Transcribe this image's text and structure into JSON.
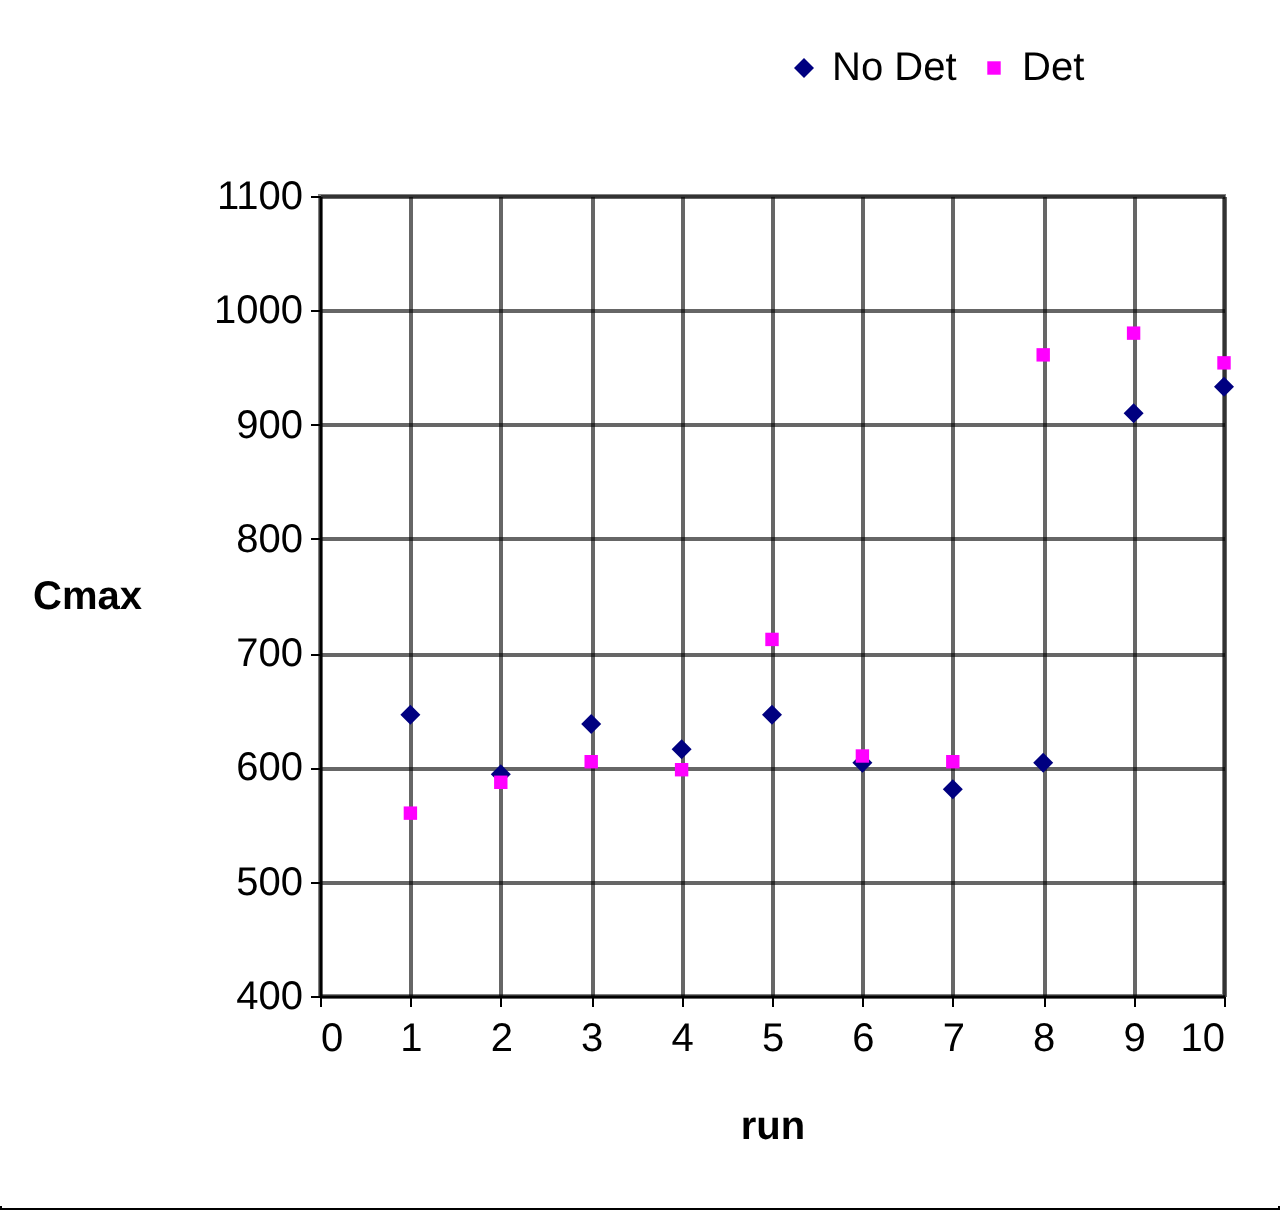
{
  "chart_data": {
    "type": "scatter",
    "xlabel": "run",
    "ylabel": "Cmax",
    "x": [
      1,
      2,
      3,
      4,
      5,
      6,
      7,
      8,
      9,
      10
    ],
    "series": [
      {
        "name": "No Det",
        "color": "#000080",
        "marker": "diamond",
        "values": [
          646,
          594,
          638,
          616,
          646,
          604,
          581,
          604,
          910,
          933
        ]
      },
      {
        "name": "Det",
        "color": "#ff00ff",
        "marker": "square",
        "values": [
          560,
          587,
          605,
          598,
          712,
          610,
          605,
          961,
          980,
          954
        ]
      }
    ],
    "xlim": [
      0,
      10
    ],
    "xticks": [
      0,
      1,
      2,
      3,
      4,
      5,
      6,
      7,
      8,
      9,
      10
    ],
    "ylim": [
      400,
      1100
    ],
    "yticks": [
      400,
      500,
      600,
      700,
      800,
      900,
      1000,
      1100
    ],
    "grid": true,
    "legend": "top right"
  }
}
